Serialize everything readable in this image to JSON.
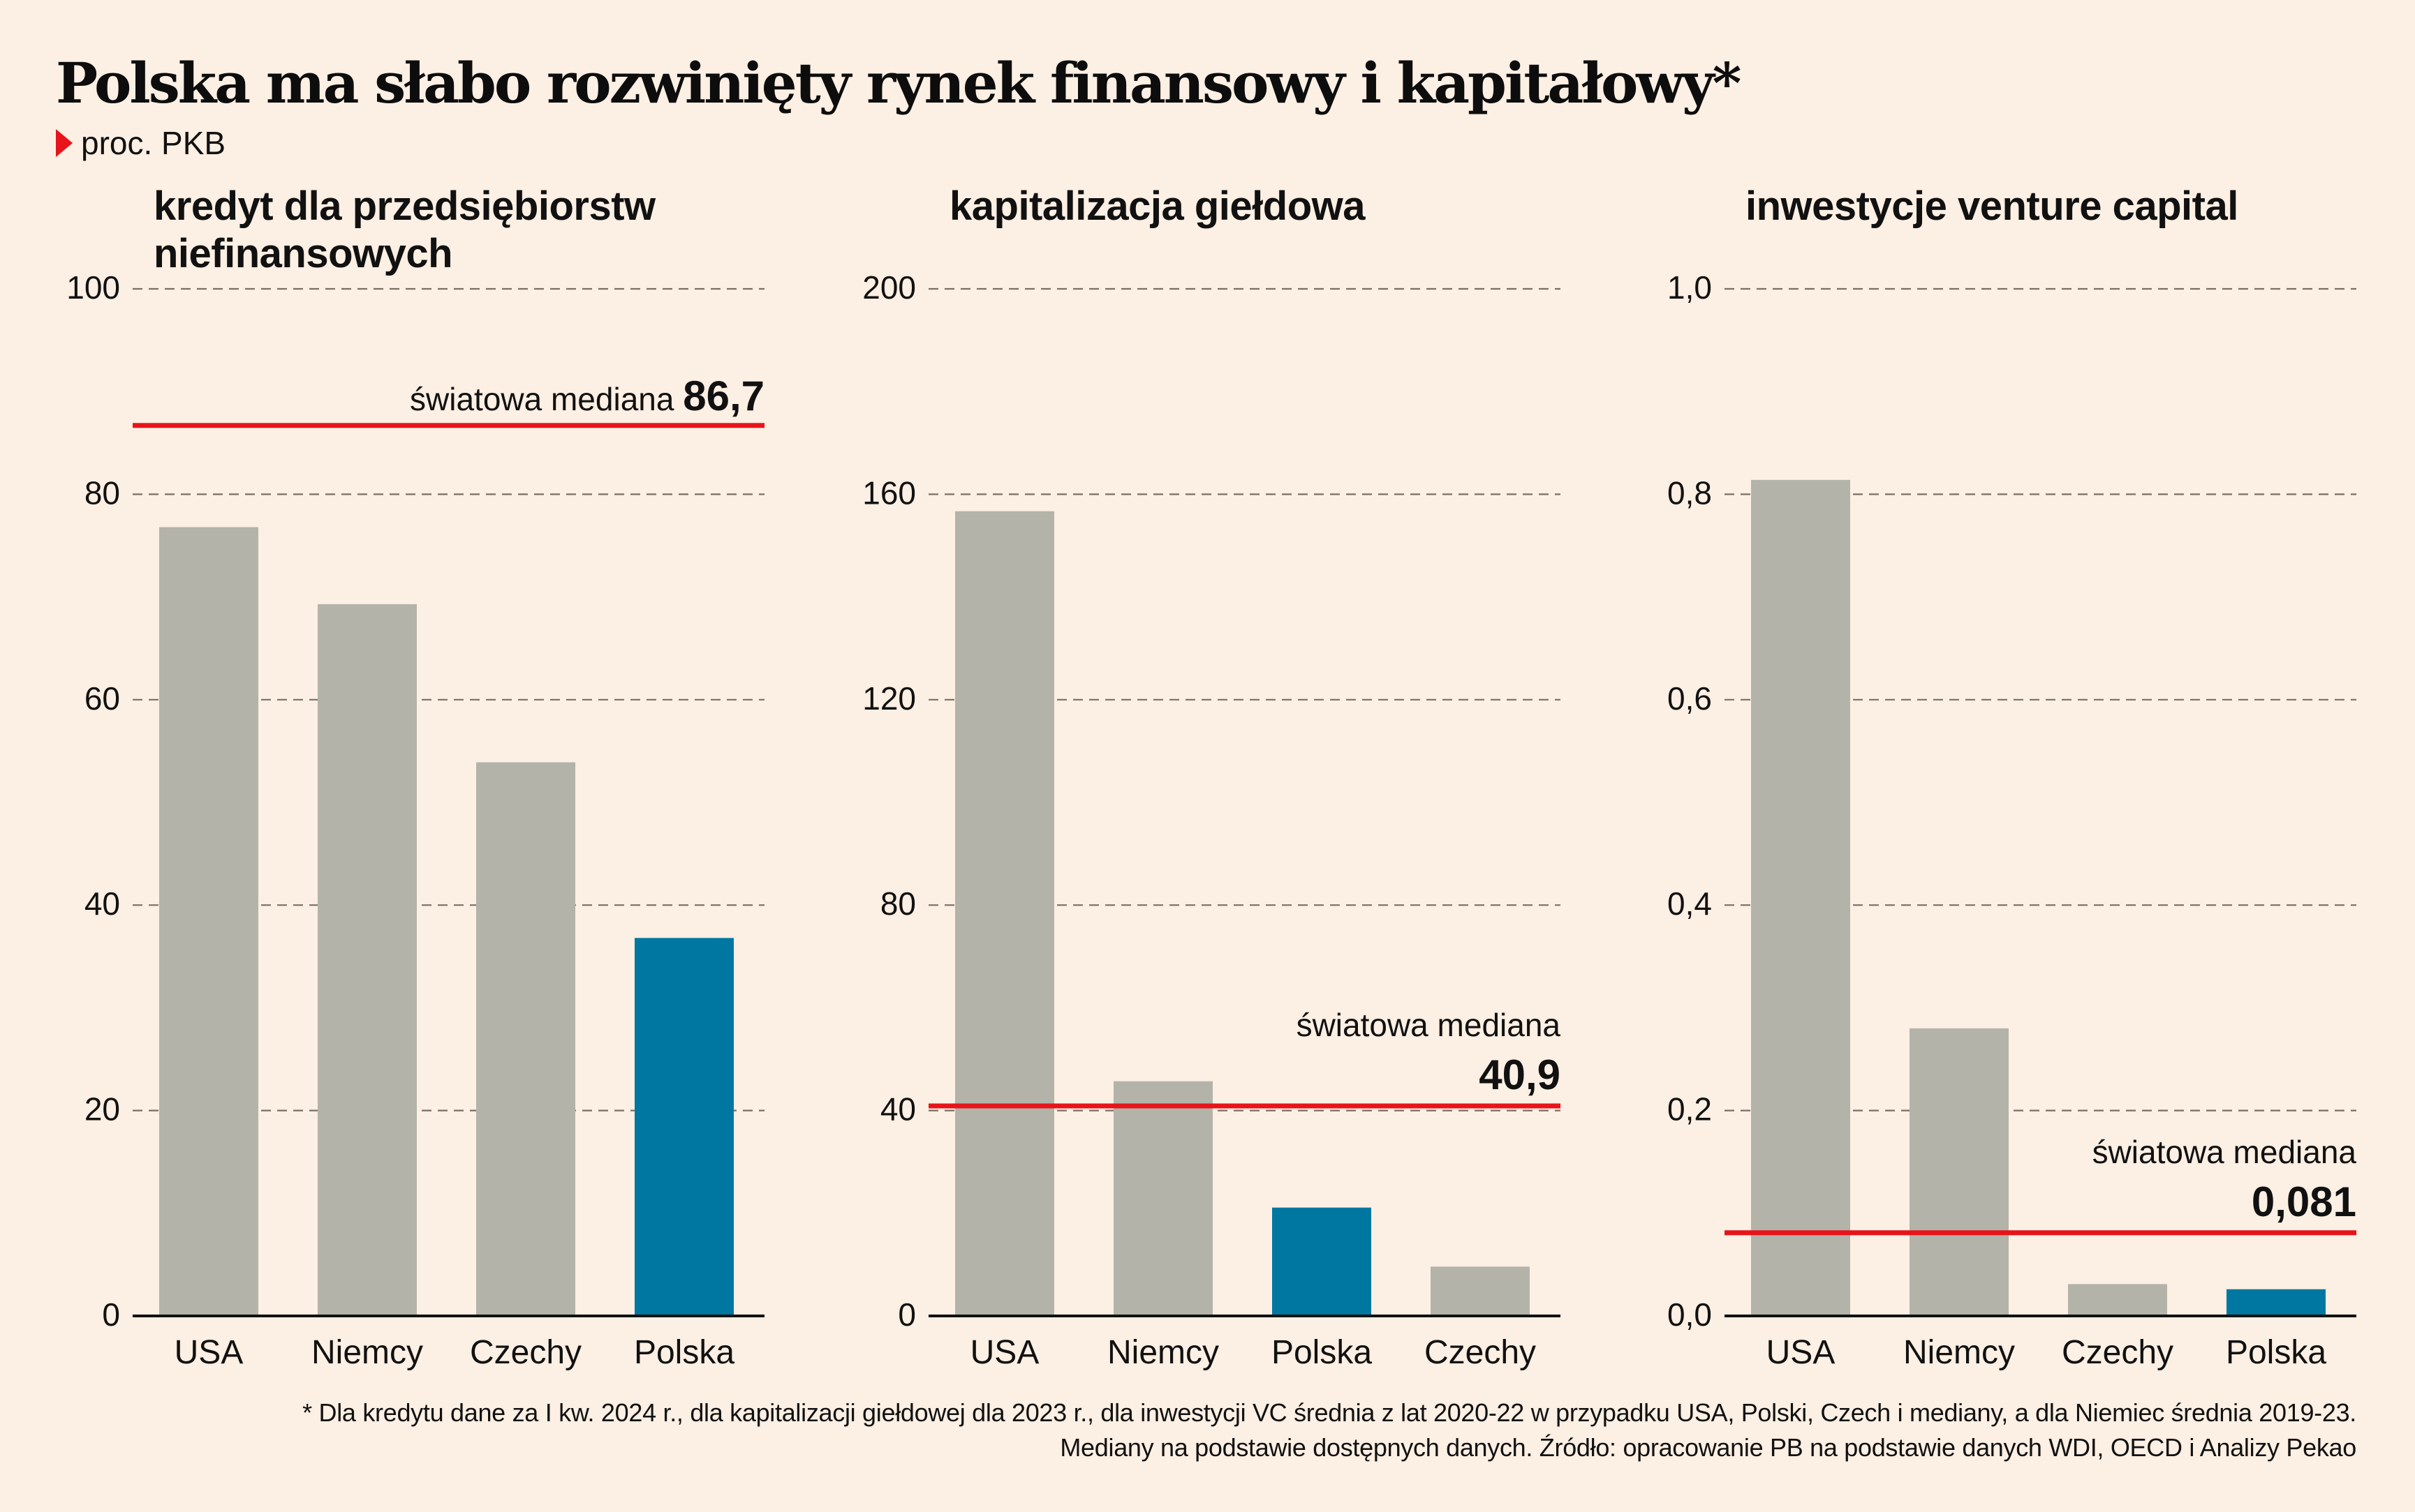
{
  "title": "Polska ma słabo rozwinięty rynek finansowy i kapitałowy*",
  "unit_label": "proc. PKB",
  "colors": {
    "background": "#fcefe3",
    "bar_default": "#b3b3aa",
    "bar_highlight": "#0077a0",
    "median_line": "#e8141a",
    "gridline": "#7a6f66",
    "axis": "#111111"
  },
  "median_label": "światowa mediana",
  "chart_data": [
    {
      "type": "bar",
      "title": "kredyt dla przedsiębiorstw niefinansowych",
      "title_lines": [
        "kredyt dla przedsiębiorstw",
        "niefinansowych"
      ],
      "categories": [
        "USA",
        "Niemcy",
        "Czechy",
        "Polska"
      ],
      "values": [
        76.8,
        69.3,
        53.9,
        36.8
      ],
      "highlight": "Polska",
      "ylim": [
        0,
        100
      ],
      "yticks": [
        0,
        20,
        40,
        60,
        80,
        100
      ],
      "ytick_labels": [
        "0",
        "20",
        "40",
        "60",
        "80",
        "100"
      ],
      "grid": true,
      "median": {
        "value": 86.7,
        "label": "86,7"
      },
      "xlabel": "",
      "ylabel": ""
    },
    {
      "type": "bar",
      "title": "kapitalizacja giełdowa",
      "title_lines": [
        "kapitalizacja giełdowa"
      ],
      "categories": [
        "USA",
        "Niemcy",
        "Polska",
        "Czechy"
      ],
      "values": [
        156.7,
        45.7,
        21.1,
        9.6
      ],
      "highlight": "Polska",
      "ylim": [
        0,
        200
      ],
      "yticks": [
        0,
        40,
        80,
        120,
        160,
        200
      ],
      "ytick_labels": [
        "0",
        "40",
        "80",
        "120",
        "160",
        "200"
      ],
      "grid": true,
      "median": {
        "value": 40.9,
        "label": "40,9"
      },
      "xlabel": "",
      "ylabel": ""
    },
    {
      "type": "bar",
      "title": "inwestycje venture capital",
      "title_lines": [
        "inwestycje venture capital"
      ],
      "categories": [
        "USA",
        "Niemcy",
        "Czechy",
        "Polska"
      ],
      "values": [
        0.814,
        0.28,
        0.031,
        0.026
      ],
      "highlight": "Polska",
      "ylim": [
        0,
        1.0
      ],
      "yticks": [
        0,
        0.2,
        0.4,
        0.6,
        0.8,
        1.0
      ],
      "ytick_labels": [
        "0,0",
        "0,2",
        "0,4",
        "0,6",
        "0,8",
        "1,0"
      ],
      "grid": true,
      "median": {
        "value": 0.081,
        "label": "0,081"
      },
      "xlabel": "",
      "ylabel": ""
    }
  ],
  "footnote": [
    "* Dla kredytu dane za I kw. 2024 r., dla kapitalizacji giełdowej dla 2023 r., dla inwestycji VC średnia z lat 2020-22 w przypadku USA, Polski, Czech i mediany, a dla Niemiec średnia 2019-23.",
    "Mediany na podstawie dostępnych danych. Źródło: opracowanie PB na podstawie danych WDI, OECD i Analizy Pekao"
  ]
}
